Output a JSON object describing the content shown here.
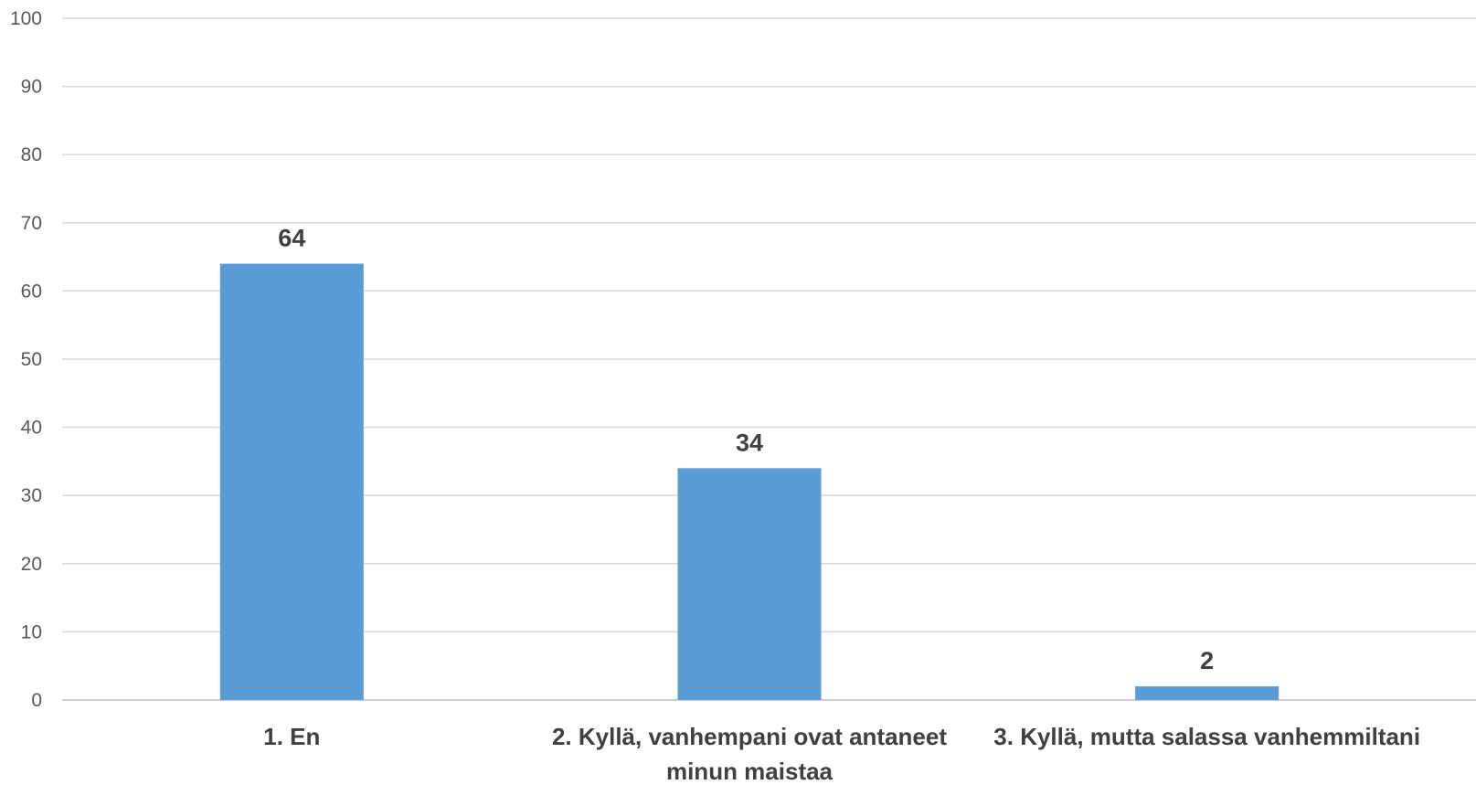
{
  "chart_data": {
    "type": "bar",
    "categories": [
      [
        "1. En"
      ],
      [
        "2. Kyllä, vanhempani ovat antaneet",
        "minun maistaa"
      ],
      [
        "3. Kyllä, mutta salassa vanhemmiltani"
      ]
    ],
    "values": [
      64,
      34,
      2
    ],
    "data_labels": [
      "64",
      "34",
      "2"
    ],
    "ylim": [
      0,
      100
    ],
    "yticks": [
      0,
      10,
      20,
      30,
      40,
      50,
      60,
      70,
      80,
      90,
      100
    ],
    "grid": true,
    "legend": "none",
    "title": "",
    "xlabel": "",
    "ylabel": "",
    "bar_color": "#5b9bd5"
  }
}
